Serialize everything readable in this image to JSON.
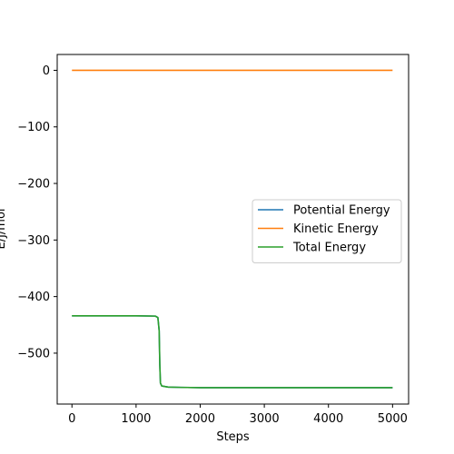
{
  "chart_data": {
    "type": "line",
    "xlabel": "Steps",
    "ylabel": "E/J/mol",
    "xlim": [
      -230,
      5250
    ],
    "ylim": [
      -590,
      28
    ],
    "xticks": [
      0,
      1000,
      2000,
      3000,
      4000,
      5000
    ],
    "yticks": [
      0,
      -100,
      -200,
      -300,
      -400,
      -500
    ],
    "xtick_labels": [
      "0",
      "1000",
      "2000",
      "3000",
      "4000",
      "5000"
    ],
    "ytick_labels": [
      "0",
      "−100",
      "−200",
      "−300",
      "−400",
      "−500"
    ],
    "grid": false,
    "legend_position": "center-right",
    "series": [
      {
        "name": "Potential Energy",
        "color": "#1f77b4",
        "x": [
          0,
          500,
          1000,
          1300,
          1340,
          1360,
          1370,
          1380,
          1400,
          1500,
          1700,
          2000,
          3000,
          4000,
          5000
        ],
        "y": [
          -434,
          -434,
          -434,
          -434.5,
          -437,
          -460,
          -520,
          -553,
          -558,
          -560,
          -560.5,
          -561,
          -561,
          -561,
          -561
        ]
      },
      {
        "name": "Kinetic Energy",
        "color": "#ff7f0e",
        "x": [
          0,
          1000,
          2000,
          3000,
          4000,
          5000
        ],
        "y": [
          0,
          0,
          0,
          0,
          0,
          0
        ]
      },
      {
        "name": "Total Energy",
        "color": "#2ca02c",
        "x": [
          0,
          500,
          1000,
          1300,
          1340,
          1360,
          1370,
          1380,
          1400,
          1500,
          1700,
          2000,
          3000,
          4000,
          5000
        ],
        "y": [
          -434,
          -434,
          -434,
          -434.5,
          -437,
          -460,
          -520,
          -553,
          -558,
          -560,
          -560.5,
          -561,
          -561,
          -561,
          -561
        ]
      }
    ]
  }
}
